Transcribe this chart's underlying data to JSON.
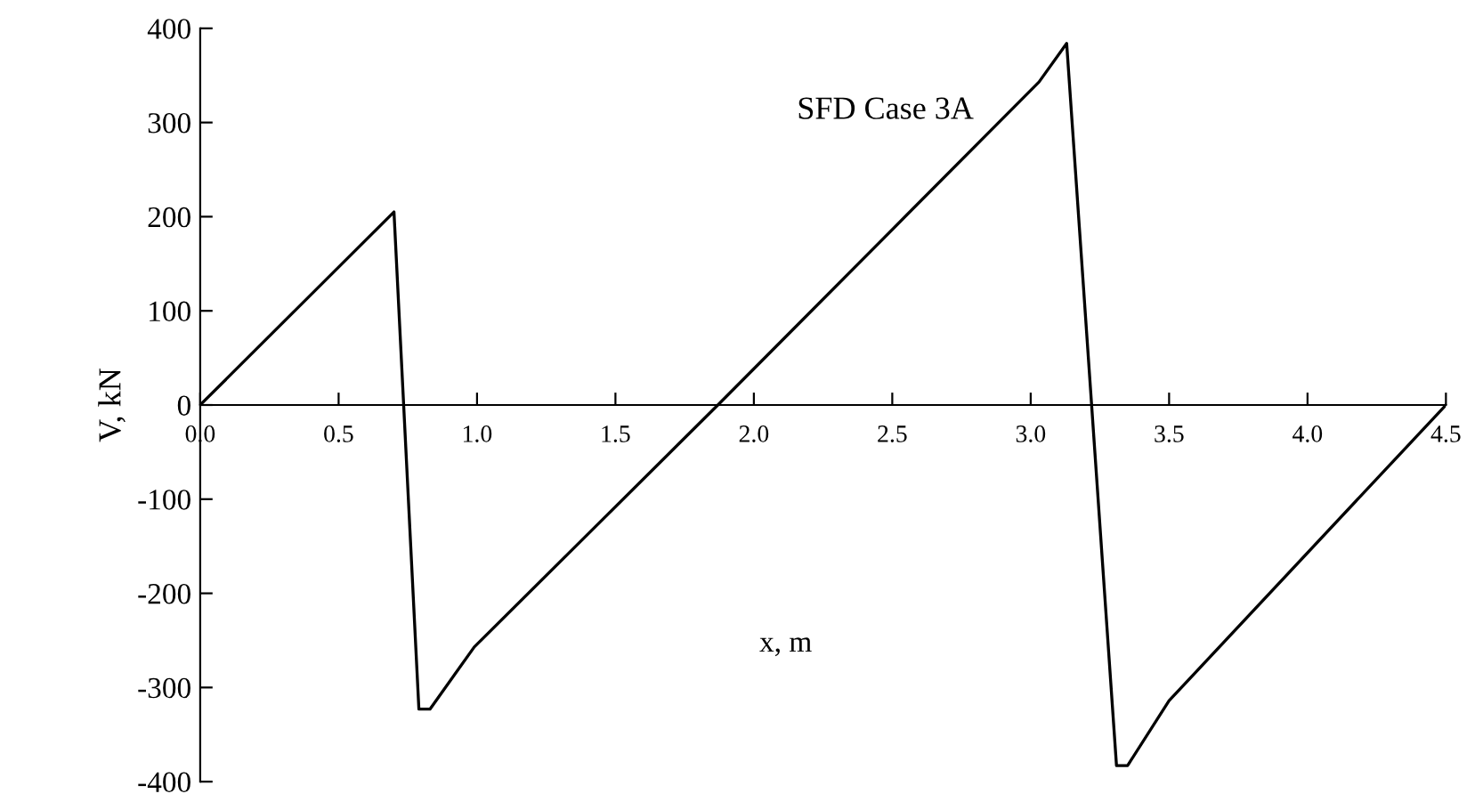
{
  "chart_data": {
    "type": "line",
    "title": "SFD Case 3A",
    "xlabel": "x, m",
    "ylabel": "V, kN",
    "x": [
      0,
      0.7,
      0.79,
      0.83,
      0.99,
      1.87,
      3.03,
      3.13,
      3.31,
      3.35,
      3.5,
      4.5
    ],
    "series": [
      {
        "color": "#000000",
        "values": [
          0,
          205,
          -323,
          -323,
          -257,
          0,
          343,
          384,
          -383,
          -383,
          -314,
          0
        ]
      }
    ],
    "xlim": [
      0,
      4.5
    ],
    "ylim": [
      -400,
      400
    ],
    "xticks": [
      {
        "value": 0,
        "label": "0.0"
      },
      0.5,
      {
        "value": 1,
        "label": "1.0"
      },
      1.5,
      {
        "value": 2,
        "label": "2.0"
      },
      2.5,
      {
        "value": 3,
        "label": "3.0"
      },
      3.5,
      {
        "value": 4,
        "label": "4.0"
      },
      4.5
    ],
    "yticks": [
      -400,
      -300,
      -200,
      -100,
      0,
      100,
      200,
      300,
      400
    ],
    "grid": false,
    "marker": "none",
    "line_style": "solid"
  }
}
